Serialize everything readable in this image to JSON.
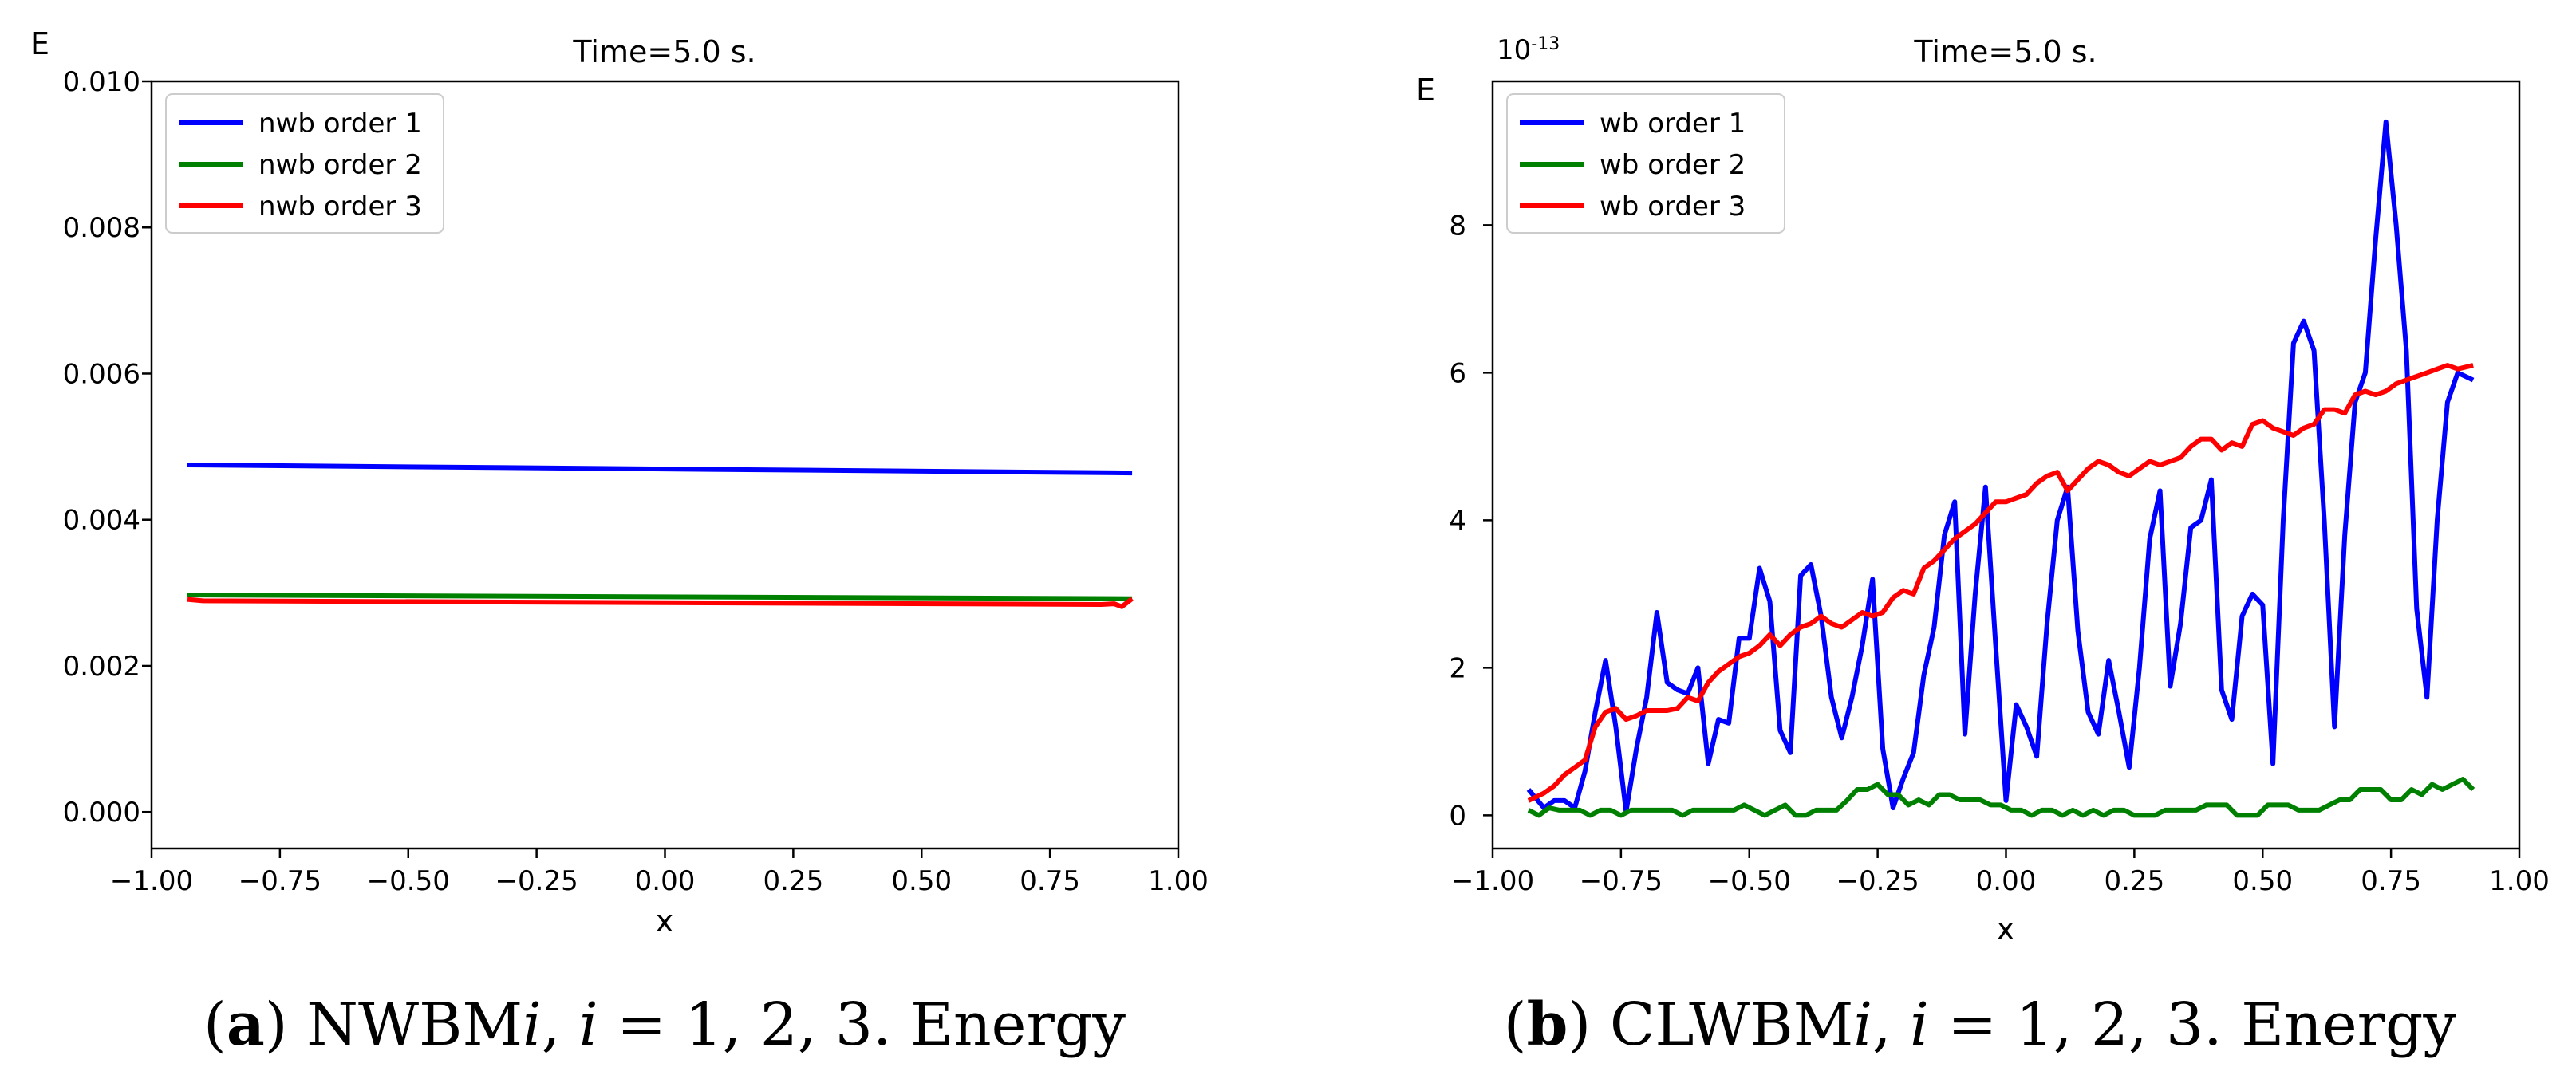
{
  "chart_data": [
    {
      "type": "line",
      "title": "Time=5.0 s.",
      "xlabel": "x",
      "ylabel": "E",
      "scale_label": "",
      "xlim": [
        -1.0,
        1.0
      ],
      "ylim": [
        -0.0005,
        0.01
      ],
      "xticks": [
        -1.0,
        -0.75,
        -0.5,
        -0.25,
        0.0,
        0.25,
        0.5,
        0.75,
        1.0
      ],
      "xtick_labels": [
        "−1.00",
        "−0.75",
        "−0.50",
        "−0.25",
        "0.00",
        "0.25",
        "0.50",
        "0.75",
        "1.00"
      ],
      "yticks": [
        0.0,
        0.002,
        0.004,
        0.006,
        0.008,
        0.01
      ],
      "ytick_labels": [
        "0.000",
        "0.002",
        "0.004",
        "0.006",
        "0.008",
        "0.010"
      ],
      "legend_position": "top-left",
      "series": [
        {
          "name": "nwb order 1",
          "color": "#0000ff",
          "x": [
            -0.93,
            0.91
          ],
          "values": [
            0.00475,
            0.00464
          ]
        },
        {
          "name": "nwb order 2",
          "color": "#008000",
          "x": [
            -0.93,
            0.91
          ],
          "values": [
            0.00297,
            0.00292
          ]
        },
        {
          "name": "nwb order 3",
          "color": "#ff0000",
          "x": [
            -0.93,
            -0.9,
            0.85,
            0.875,
            0.89,
            0.91
          ],
          "values": [
            0.00291,
            0.00289,
            0.00284,
            0.00285,
            0.00281,
            0.00292
          ]
        }
      ]
    },
    {
      "type": "line",
      "title": "Time=5.0 s.",
      "xlabel": "x",
      "ylabel": "E",
      "scale_label": "10-13",
      "xlim": [
        -1.0,
        1.0
      ],
      "ylim": [
        -0.45,
        9.95
      ],
      "xticks": [
        -1.0,
        -0.75,
        -0.5,
        -0.25,
        0.0,
        0.25,
        0.5,
        0.75,
        1.0
      ],
      "xtick_labels": [
        "−1.00",
        "−0.75",
        "−0.50",
        "−0.25",
        "0.00",
        "0.25",
        "0.50",
        "0.75",
        "1.00"
      ],
      "yticks": [
        0,
        2,
        4,
        6,
        8
      ],
      "ytick_labels": [
        "0",
        "2",
        "4",
        "6",
        "8"
      ],
      "legend_position": "top-left",
      "series": [
        {
          "name": "wb order 1",
          "color": "#0000ff",
          "x": [
            -0.93,
            -0.9,
            -0.88,
            -0.86,
            -0.84,
            -0.82,
            -0.8,
            -0.78,
            -0.76,
            -0.74,
            -0.72,
            -0.7,
            -0.68,
            -0.66,
            -0.64,
            -0.62,
            -0.6,
            -0.58,
            -0.56,
            -0.54,
            -0.52,
            -0.5,
            -0.48,
            -0.46,
            -0.44,
            -0.42,
            -0.4,
            -0.38,
            -0.36,
            -0.34,
            -0.32,
            -0.3,
            -0.28,
            -0.26,
            -0.24,
            -0.22,
            -0.2,
            -0.18,
            -0.16,
            -0.14,
            -0.12,
            -0.1,
            -0.08,
            -0.06,
            -0.04,
            -0.02,
            0.0,
            0.02,
            0.04,
            0.06,
            0.08,
            0.1,
            0.12,
            0.14,
            0.16,
            0.18,
            0.2,
            0.22,
            0.24,
            0.26,
            0.28,
            0.3,
            0.32,
            0.34,
            0.36,
            0.38,
            0.4,
            0.42,
            0.44,
            0.46,
            0.48,
            0.5,
            0.52,
            0.54,
            0.56,
            0.58,
            0.6,
            0.62,
            0.64,
            0.66,
            0.68,
            0.7,
            0.72,
            0.74,
            0.76,
            0.78,
            0.8,
            0.82,
            0.84,
            0.86,
            0.88,
            0.91
          ],
          "values": [
            0.35,
            0.1,
            0.2,
            0.2,
            0.1,
            0.6,
            1.4,
            2.1,
            1.2,
            0.05,
            0.9,
            1.6,
            2.75,
            1.8,
            1.7,
            1.65,
            2.0,
            0.7,
            1.3,
            1.25,
            2.4,
            2.4,
            3.35,
            2.9,
            1.15,
            0.85,
            3.25,
            3.4,
            2.7,
            1.6,
            1.05,
            1.6,
            2.3,
            3.2,
            0.9,
            0.1,
            0.5,
            0.85,
            1.9,
            2.55,
            3.8,
            4.25,
            1.1,
            3.0,
            4.45,
            2.3,
            0.2,
            1.5,
            1.2,
            0.8,
            2.6,
            4.0,
            4.45,
            2.5,
            1.4,
            1.1,
            2.1,
            1.4,
            0.65,
            2.0,
            3.75,
            4.4,
            1.75,
            2.6,
            3.9,
            4.0,
            4.55,
            1.7,
            1.3,
            2.7,
            3.0,
            2.85,
            0.7,
            4.0,
            6.4,
            6.7,
            6.3,
            4.0,
            1.2,
            3.8,
            5.6,
            6.0,
            7.8,
            9.4,
            8.0,
            6.3,
            2.8,
            1.6,
            4.0,
            5.6,
            6.0,
            5.9
          ]
        },
        {
          "name": "wb order 2",
          "color": "#008000",
          "x": [
            -0.93,
            -0.91,
            -0.89,
            -0.87,
            -0.85,
            -0.83,
            -0.81,
            -0.79,
            -0.77,
            -0.75,
            -0.73,
            -0.71,
            -0.69,
            -0.67,
            -0.65,
            -0.63,
            -0.61,
            -0.59,
            -0.57,
            -0.55,
            -0.53,
            -0.51,
            -0.49,
            -0.47,
            -0.45,
            -0.43,
            -0.41,
            -0.39,
            -0.37,
            -0.35,
            -0.33,
            -0.31,
            -0.29,
            -0.27,
            -0.25,
            -0.23,
            -0.21,
            -0.19,
            -0.17,
            -0.15,
            -0.13,
            -0.11,
            -0.09,
            -0.07,
            -0.05,
            -0.03,
            -0.01,
            0.01,
            0.03,
            0.05,
            0.07,
            0.09,
            0.11,
            0.13,
            0.15,
            0.17,
            0.19,
            0.21,
            0.23,
            0.25,
            0.27,
            0.29,
            0.31,
            0.33,
            0.35,
            0.37,
            0.39,
            0.41,
            0.43,
            0.45,
            0.47,
            0.49,
            0.51,
            0.53,
            0.55,
            0.57,
            0.59,
            0.61,
            0.63,
            0.65,
            0.67,
            0.69,
            0.71,
            0.73,
            0.75,
            0.77,
            0.79,
            0.81,
            0.83,
            0.85,
            0.87,
            0.89,
            0.91
          ],
          "values": [
            0.07,
            0.0,
            0.1,
            0.07,
            0.07,
            0.07,
            0.0,
            0.07,
            0.07,
            0.0,
            0.07,
            0.07,
            0.07,
            0.07,
            0.07,
            0.0,
            0.07,
            0.07,
            0.07,
            0.07,
            0.07,
            0.14,
            0.07,
            0.0,
            0.07,
            0.14,
            0.0,
            0.0,
            0.07,
            0.07,
            0.07,
            0.2,
            0.35,
            0.35,
            0.42,
            0.28,
            0.28,
            0.14,
            0.21,
            0.14,
            0.28,
            0.28,
            0.21,
            0.21,
            0.21,
            0.14,
            0.14,
            0.07,
            0.07,
            0.0,
            0.07,
            0.07,
            0.0,
            0.07,
            0.0,
            0.07,
            0.0,
            0.07,
            0.07,
            0.0,
            0.0,
            0.0,
            0.07,
            0.07,
            0.07,
            0.07,
            0.14,
            0.14,
            0.14,
            0.0,
            0.0,
            0.0,
            0.14,
            0.14,
            0.14,
            0.07,
            0.07,
            0.07,
            0.14,
            0.21,
            0.21,
            0.35,
            0.35,
            0.35,
            0.21,
            0.21,
            0.35,
            0.28,
            0.42,
            0.35,
            0.42,
            0.49,
            0.35
          ]
        },
        {
          "name": "wb order 3",
          "color": "#ff0000",
          "x": [
            -0.93,
            -0.9,
            -0.88,
            -0.86,
            -0.84,
            -0.82,
            -0.8,
            -0.78,
            -0.76,
            -0.74,
            -0.72,
            -0.7,
            -0.68,
            -0.66,
            -0.64,
            -0.62,
            -0.6,
            -0.58,
            -0.56,
            -0.54,
            -0.52,
            -0.5,
            -0.48,
            -0.46,
            -0.44,
            -0.42,
            -0.4,
            -0.38,
            -0.36,
            -0.34,
            -0.32,
            -0.3,
            -0.28,
            -0.26,
            -0.24,
            -0.22,
            -0.2,
            -0.18,
            -0.16,
            -0.14,
            -0.12,
            -0.1,
            -0.08,
            -0.06,
            -0.04,
            -0.02,
            0.0,
            0.02,
            0.04,
            0.06,
            0.08,
            0.1,
            0.12,
            0.14,
            0.16,
            0.18,
            0.2,
            0.22,
            0.24,
            0.26,
            0.28,
            0.3,
            0.32,
            0.34,
            0.36,
            0.38,
            0.4,
            0.42,
            0.44,
            0.46,
            0.48,
            0.5,
            0.52,
            0.54,
            0.56,
            0.58,
            0.6,
            0.62,
            0.64,
            0.66,
            0.68,
            0.7,
            0.72,
            0.74,
            0.76,
            0.78,
            0.8,
            0.82,
            0.84,
            0.86,
            0.88,
            0.91
          ],
          "values": [
            0.2,
            0.3,
            0.4,
            0.55,
            0.65,
            0.75,
            1.2,
            1.4,
            1.45,
            1.3,
            1.35,
            1.42,
            1.42,
            1.42,
            1.45,
            1.6,
            1.55,
            1.8,
            1.95,
            2.05,
            2.15,
            2.2,
            2.3,
            2.45,
            2.3,
            2.45,
            2.55,
            2.6,
            2.7,
            2.6,
            2.55,
            2.65,
            2.75,
            2.7,
            2.75,
            2.95,
            3.05,
            3.0,
            3.35,
            3.45,
            3.6,
            3.75,
            3.85,
            3.95,
            4.1,
            4.25,
            4.25,
            4.3,
            4.35,
            4.5,
            4.6,
            4.65,
            4.4,
            4.55,
            4.7,
            4.8,
            4.75,
            4.65,
            4.6,
            4.7,
            4.8,
            4.75,
            4.8,
            4.85,
            5.0,
            5.1,
            5.1,
            4.95,
            5.05,
            5.0,
            5.3,
            5.35,
            5.25,
            5.2,
            5.15,
            5.25,
            5.3,
            5.5,
            5.5,
            5.45,
            5.7,
            5.75,
            5.7,
            5.75,
            5.85,
            5.9,
            5.95,
            6.0,
            6.05,
            6.1,
            6.05,
            6.1
          ]
        }
      ]
    }
  ],
  "captions": [
    {
      "label": "(a)",
      "label_prefix": "(",
      "label_letter": "a",
      "label_suffix": ")",
      "name": "NWBM",
      "variable": "i",
      "sep": ", ",
      "variable2": "i",
      "eq": " = 1, 2, 3. Energy"
    },
    {
      "label": "(b)",
      "label_prefix": "(",
      "label_letter": "b",
      "label_suffix": ")",
      "name": "CLWBM",
      "variable": "i",
      "sep": ", ",
      "variable2": "i",
      "eq": " = 1, 2, 3. Energy"
    }
  ]
}
